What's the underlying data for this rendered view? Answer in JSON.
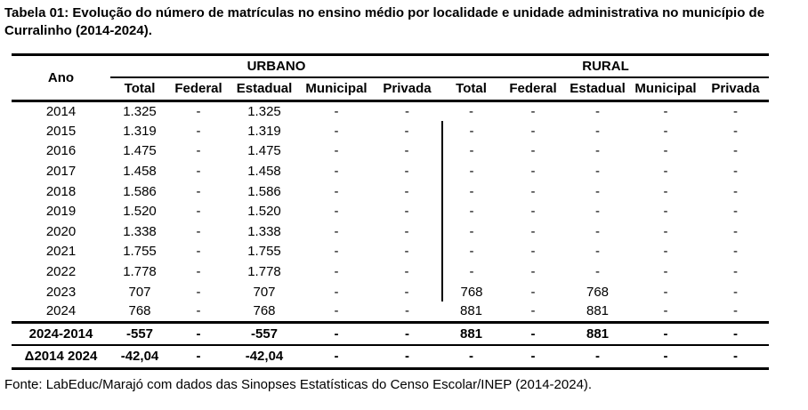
{
  "title": "Tabela 01: Evolução do número de matrículas no ensino médio por localidade e unidade administrativa no município de Curralinho (2014-2024).",
  "source": "Fonte: LabEduc/Marajó com dados das Sinopses Estatísticas do Censo Escolar/INEP (2014-2024).",
  "colors": {
    "text": "#000000",
    "background": "#ffffff",
    "border": "#000000"
  },
  "table": {
    "ano_header": "Ano",
    "col_groups": [
      {
        "label": "URBANO"
      },
      {
        "label": "RURAL"
      }
    ],
    "sub_headers": [
      "Total",
      "Federal",
      "Estadual",
      "Municipal",
      "Privada"
    ],
    "rows": [
      {
        "ano": "2014",
        "cells": [
          "1.325",
          "-",
          "1.325",
          "-",
          "-",
          "-",
          "-",
          "-",
          "-",
          "-"
        ],
        "divider": false
      },
      {
        "ano": "2015",
        "cells": [
          "1.319",
          "-",
          "1.319",
          "-",
          "-",
          "-",
          "-",
          "-",
          "-",
          "-"
        ],
        "divider": true
      },
      {
        "ano": "2016",
        "cells": [
          "1.475",
          "-",
          "1.475",
          "-",
          "-",
          "-",
          "-",
          "-",
          "-",
          "-"
        ],
        "divider": true
      },
      {
        "ano": "2017",
        "cells": [
          "1.458",
          "-",
          "1.458",
          "-",
          "-",
          "-",
          "-",
          "-",
          "-",
          "-"
        ],
        "divider": true
      },
      {
        "ano": "2018",
        "cells": [
          "1.586",
          "-",
          "1.586",
          "-",
          "-",
          "-",
          "-",
          "-",
          "-",
          "-"
        ],
        "divider": true
      },
      {
        "ano": "2019",
        "cells": [
          "1.520",
          "-",
          "1.520",
          "-",
          "-",
          "-",
          "-",
          "-",
          "-",
          "-"
        ],
        "divider": true
      },
      {
        "ano": "2020",
        "cells": [
          "1.338",
          "-",
          "1.338",
          "-",
          "-",
          "-",
          "-",
          "-",
          "-",
          "-"
        ],
        "divider": true
      },
      {
        "ano": "2021",
        "cells": [
          "1.755",
          "-",
          "1.755",
          "-",
          "-",
          "-",
          "-",
          "-",
          "-",
          "-"
        ],
        "divider": true
      },
      {
        "ano": "2022",
        "cells": [
          "1.778",
          "-",
          "1.778",
          "-",
          "-",
          "-",
          "-",
          "-",
          "-",
          "-"
        ],
        "divider": true
      },
      {
        "ano": "2023",
        "cells": [
          "707",
          "-",
          "707",
          "-",
          "-",
          "768",
          "-",
          "768",
          "-",
          "-"
        ],
        "divider": true
      },
      {
        "ano": "2024",
        "cells": [
          "768",
          "-",
          "768",
          "-",
          "-",
          "881",
          "-",
          "881",
          "-",
          "-"
        ],
        "divider": false
      }
    ],
    "summary_rows": [
      {
        "label": "2024-2014",
        "cells": [
          "-557",
          "-",
          "-557",
          "-",
          "-",
          "881",
          "-",
          "881",
          "-",
          "-"
        ]
      },
      {
        "label": "Δ2014 2024",
        "cells": [
          "-42,04",
          "-",
          "-42,04",
          "-",
          "-",
          "-",
          "-",
          "-",
          "-",
          "-"
        ]
      }
    ]
  }
}
